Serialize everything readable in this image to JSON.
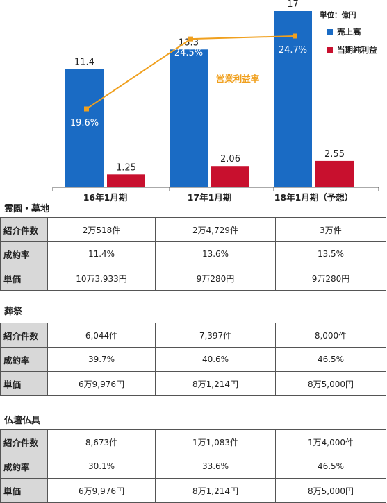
{
  "chart_data": {
    "type": "bar",
    "categories": [
      "16年1月期",
      "17年1月期",
      "18年1月期（予想）"
    ],
    "unit_label": "単位：億円",
    "series": [
      {
        "name": "売上高",
        "values": [
          11.4,
          13.3,
          17
        ],
        "labels": [
          "11.4",
          "13.3",
          "17"
        ],
        "color": "#1a6bc4"
      },
      {
        "name": "当期純利益",
        "values": [
          1.25,
          2.06,
          2.55
        ],
        "labels": [
          "1.25",
          "2.06",
          "2.55"
        ],
        "color": "#c8102e"
      }
    ],
    "line": {
      "name": "営業利益率",
      "values": [
        19.6,
        24.5,
        24.7
      ],
      "labels": [
        "19.6%",
        "24.5%",
        "24.7%"
      ],
      "color": "#f0a01e"
    },
    "ylim": [
      0,
      17
    ]
  },
  "sections": [
    {
      "title": "霊園・墓地",
      "rows": [
        {
          "label": "紹介件数",
          "values": [
            "2万518件",
            "2万4,729件",
            "3万件"
          ]
        },
        {
          "label": "成約率",
          "values": [
            "11.4%",
            "13.6%",
            "13.5%"
          ]
        },
        {
          "label": "単価",
          "values": [
            "10万3,933円",
            "9万280円",
            "9万280円"
          ]
        }
      ]
    },
    {
      "title": "葬祭",
      "rows": [
        {
          "label": "紹介件数",
          "values": [
            "6,044件",
            "7,397件",
            "8,000件"
          ]
        },
        {
          "label": "成約率",
          "values": [
            "39.7%",
            "40.6%",
            "46.5%"
          ]
        },
        {
          "label": "単価",
          "values": [
            "6万9,976円",
            "8万1,214円",
            "8万5,000円"
          ]
        }
      ]
    },
    {
      "title": "仏壇仏具",
      "rows": [
        {
          "label": "紹介件数",
          "values": [
            "8,673件",
            "1万1,083件",
            "1万4,000件"
          ]
        },
        {
          "label": "成約率",
          "values": [
            "30.1%",
            "33.6%",
            "46.5%"
          ]
        },
        {
          "label": "単価",
          "values": [
            "6万9,976円",
            "8万1,214円",
            "8万5,000円"
          ]
        }
      ]
    }
  ]
}
